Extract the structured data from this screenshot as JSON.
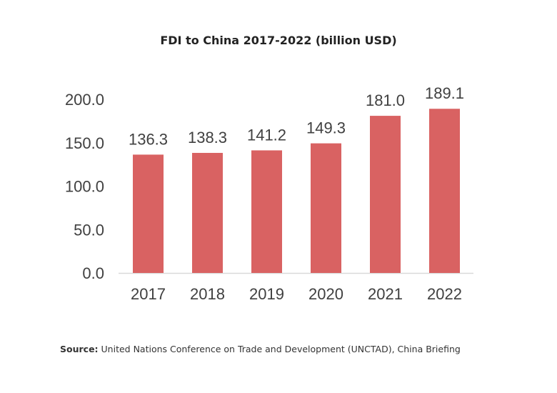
{
  "chart_data": {
    "type": "bar",
    "title": "FDI to China 2017-2022 (billion USD)",
    "categories": [
      "2017",
      "2018",
      "2019",
      "2020",
      "2021",
      "2022"
    ],
    "values": [
      136.3,
      138.3,
      141.2,
      149.3,
      181.0,
      189.1
    ],
    "data_labels": [
      "136.3",
      "138.3",
      "141.2",
      "149.3",
      "181.0",
      "189.1"
    ],
    "y_ticks": [
      "0.0",
      "50.0",
      "100.0",
      "150.0",
      "200.0"
    ],
    "ylim": [
      0,
      200
    ],
    "grid": false,
    "legend": "none",
    "bar_color": "#d96262",
    "xlabel": "",
    "ylabel": ""
  },
  "source": {
    "label": "Source:",
    "text": " United Nations Conference on Trade and Development (UNCTAD), China Briefing"
  }
}
